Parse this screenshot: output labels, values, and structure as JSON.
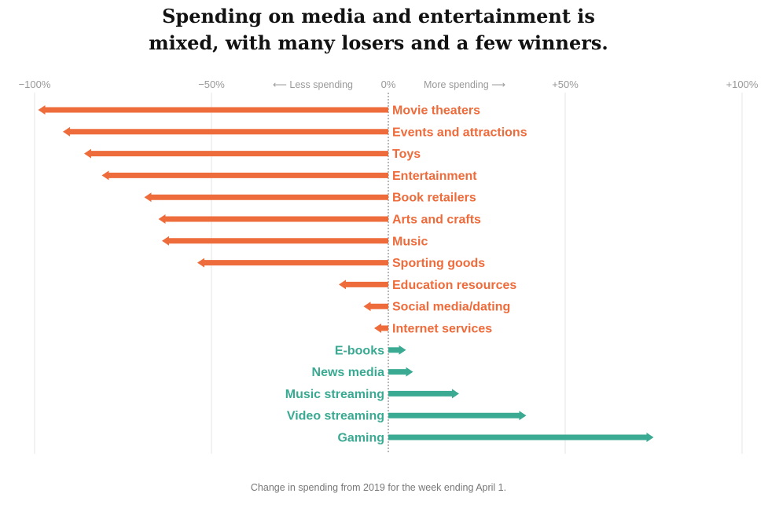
{
  "title": {
    "line1": "Spending on media and entertainment is",
    "line2": "mixed, with many losers and a few winners."
  },
  "direction_labels": {
    "less": "⟵ Less spending",
    "more": "More spending ⟶"
  },
  "note": "Change in spending from 2019 for the week ending April 1.",
  "colors": {
    "negative": "#ee6b3b",
    "positive": "#3aaa93",
    "grid": "#e6e6e6",
    "zero_line": "#888888"
  },
  "chart_data": {
    "type": "bar",
    "orientation": "horizontal-arrows",
    "xlim": [
      -100,
      100
    ],
    "x_ticks": [
      {
        "value": -100,
        "label": "−100%"
      },
      {
        "value": -50,
        "label": "−50%"
      },
      {
        "value": 0,
        "label": "0%"
      },
      {
        "value": 50,
        "label": "+50%"
      },
      {
        "value": 100,
        "label": "+100%"
      }
    ],
    "categories": [
      "Movie theaters",
      "Events and attractions",
      "Toys",
      "Entertainment",
      "Book retailers",
      "Arts and crafts",
      "Music",
      "Sporting goods",
      "Education resources",
      "Social media/dating",
      "Internet services",
      "E-books",
      "News media",
      "Music streaming",
      "Video streaming",
      "Gaming"
    ],
    "values": [
      -99,
      -92,
      -86,
      -81,
      -69,
      -65,
      -64,
      -54,
      -14,
      -7,
      -4,
      5,
      7,
      20,
      39,
      75
    ],
    "grid": true
  }
}
